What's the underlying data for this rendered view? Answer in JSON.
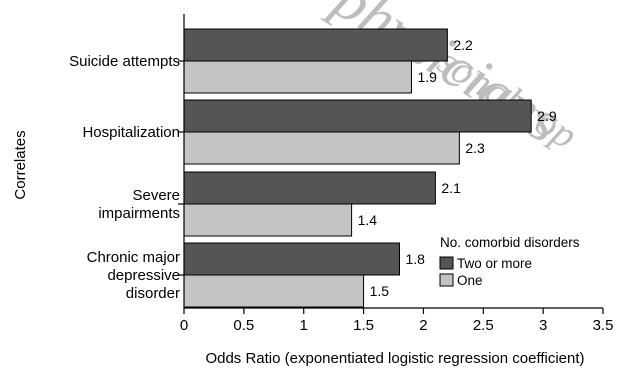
{
  "chart_data": {
    "type": "bar",
    "orientation": "horizontal",
    "title": "",
    "xlabel": "Odds Ratio (exponentiated logistic regression coefficient)",
    "ylabel": "Correlates",
    "xlim": [
      0,
      3.5
    ],
    "xticks": [
      "0",
      "0.5",
      "1",
      "1.5",
      "2",
      "2.5",
      "3",
      "3.5"
    ],
    "grid": false,
    "categories": [
      [
        "Suicide attempts"
      ],
      [
        "Hospitalization"
      ],
      [
        "Severe",
        "impairments"
      ],
      [
        "Chronic major",
        "depressive",
        "disorder"
      ]
    ],
    "series": [
      {
        "name": "Two or more",
        "values": [
          2.2,
          2.9,
          2.1,
          1.8
        ],
        "labels": [
          "2.2",
          "2.9",
          "2.1",
          "1.8"
        ],
        "color": "#555555"
      },
      {
        "name": "One",
        "values": [
          1.9,
          2.3,
          1.4,
          1.5
        ],
        "labels": [
          "1.9",
          "2.3",
          "1.4",
          "1.5"
        ],
        "color": "#c4c4c4"
      }
    ],
    "legend": {
      "title": "No. comorbid disorders",
      "placement": "bottom-right"
    }
  },
  "watermark": {
    "lines": [
      "physicians",
      "personal cop"
    ]
  }
}
